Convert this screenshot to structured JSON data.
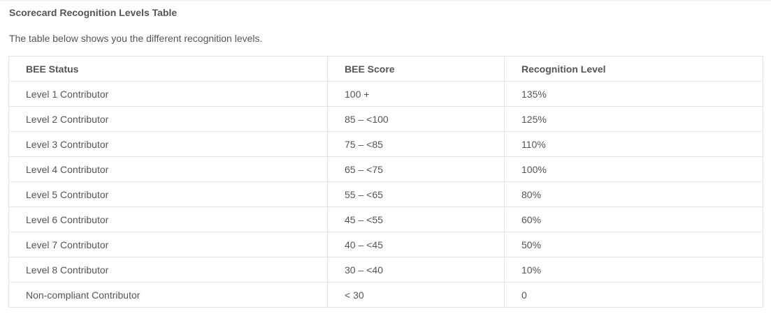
{
  "section": {
    "title": "Scorecard Recognition Levels Table",
    "intro": "The table below shows you the different recognition levels."
  },
  "table": {
    "headers": [
      "BEE Status",
      "BEE Score",
      "Recognition Level"
    ],
    "rows": [
      [
        "Level 1 Contributor",
        "100 +",
        "135%"
      ],
      [
        "Level 2 Contributor",
        "85 – <100",
        "125%"
      ],
      [
        "Level 3 Contributor",
        "75 – <85",
        "110%"
      ],
      [
        "Level 4 Contributor",
        "65 – <75",
        "100%"
      ],
      [
        "Level 5 Contributor",
        "55 – <65",
        "80%"
      ],
      [
        "Level 6 Contributor",
        "45 – <55",
        "60%"
      ],
      [
        "Level 7 Contributor",
        "40 – <45",
        "50%"
      ],
      [
        "Level 8 Contributor",
        "30 – <40",
        "10%"
      ],
      [
        "Non-compliant Contributor",
        "< 30",
        "0"
      ]
    ]
  }
}
